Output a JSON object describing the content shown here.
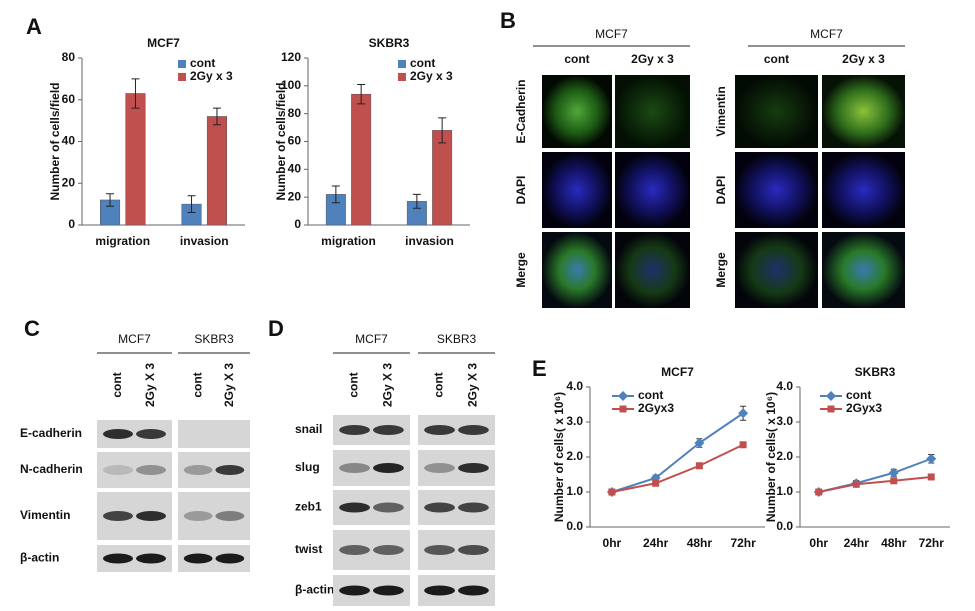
{
  "panel_labels": [
    "A",
    "B",
    "C",
    "D",
    "E"
  ],
  "chart_data": [
    {
      "type": "bar",
      "title": "MCF7",
      "y_label": "Number of cells/field",
      "categories": [
        "migration",
        "invasion"
      ],
      "series": [
        {
          "name": "cont",
          "color": "#4f81bd",
          "values": [
            12,
            10
          ],
          "errors": [
            3,
            4
          ]
        },
        {
          "name": "2Gy x 3",
          "color": "#c0504d",
          "values": [
            63,
            52
          ],
          "errors": [
            7,
            4
          ]
        }
      ],
      "ylim": [
        0,
        80
      ],
      "yticks": [
        0,
        20,
        40,
        60,
        80
      ]
    },
    {
      "type": "bar",
      "title": "SKBR3",
      "y_label": "Number of cells/field",
      "categories": [
        "migration",
        "invasion"
      ],
      "series": [
        {
          "name": "cont",
          "color": "#4f81bd",
          "values": [
            22,
            17
          ],
          "errors": [
            6,
            5
          ]
        },
        {
          "name": "2Gy x 3",
          "color": "#c0504d",
          "values": [
            94,
            68
          ],
          "errors": [
            7,
            9
          ]
        }
      ],
      "ylim": [
        0,
        120
      ],
      "yticks": [
        0,
        20,
        40,
        60,
        80,
        100,
        120
      ]
    },
    {
      "type": "line",
      "title": "MCF7",
      "y_label": "Number of cells( x 10⁶)",
      "categories": [
        "0hr",
        "24hr",
        "48hr",
        "72hr"
      ],
      "series": [
        {
          "name": "cont",
          "color": "#4f81bd",
          "values": [
            1.0,
            1.4,
            2.4,
            3.25
          ],
          "errors": [
            0.05,
            0.08,
            0.12,
            0.2
          ]
        },
        {
          "name": "2Gyx3",
          "color": "#c0504d",
          "values": [
            1.0,
            1.25,
            1.75,
            2.35
          ],
          "errors": [
            0.05,
            0.05,
            0.05,
            0.05
          ]
        }
      ],
      "ylim": [
        0,
        4
      ],
      "yticks": [
        {
          "value": 0,
          "label": "0.0"
        },
        {
          "value": 1,
          "label": "1.0"
        },
        {
          "value": 2,
          "label": "2.0"
        },
        {
          "value": 3,
          "label": "3.0"
        },
        {
          "value": 4,
          "label": "4.0"
        }
      ]
    },
    {
      "type": "line",
      "title": "SKBR3",
      "y_label": "Number of cells( x 10⁶)",
      "categories": [
        "0hr",
        "24hr",
        "48hr",
        "72hr"
      ],
      "series": [
        {
          "name": "cont",
          "color": "#4f81bd",
          "values": [
            1.0,
            1.25,
            1.55,
            1.95
          ],
          "errors": [
            0.05,
            0.08,
            0.1,
            0.12
          ]
        },
        {
          "name": "2Gyx3",
          "color": "#c0504d",
          "values": [
            1.0,
            1.22,
            1.32,
            1.43
          ],
          "errors": [
            0.05,
            0.05,
            0.05,
            0.05
          ]
        }
      ],
      "ylim": [
        0,
        4
      ],
      "yticks": [
        {
          "value": 0,
          "label": "0.0"
        },
        {
          "value": 1,
          "label": "1.0"
        },
        {
          "value": 2,
          "label": "2.0"
        },
        {
          "value": 3,
          "label": "3.0"
        },
        {
          "value": 4,
          "label": "4.0"
        }
      ]
    }
  ],
  "panel_b": {
    "groups": [
      {
        "title": "MCF7",
        "columns": [
          "cont",
          "2Gy x 3"
        ],
        "rows": [
          "E-Cadherin",
          "DAPI",
          "Merge"
        ]
      },
      {
        "title": "MCF7",
        "columns": [
          "cont",
          "2Gy x 3"
        ],
        "rows": [
          "Vimentin",
          "DAPI",
          "Merge"
        ]
      }
    ]
  },
  "panel_c": {
    "groups": [
      {
        "title": "MCF7",
        "lanes": [
          "cont",
          "2Gy X 3"
        ]
      },
      {
        "title": "SKBR3",
        "lanes": [
          "cont",
          "2Gy X 3"
        ]
      }
    ],
    "rows": [
      "E-cadherin",
      "N-cadherin",
      "Vimentin",
      "β-actin"
    ]
  },
  "panel_d": {
    "groups": [
      {
        "title": "MCF7",
        "lanes": [
          "cont",
          "2Gy X 3"
        ]
      },
      {
        "title": "SKBR3",
        "lanes": [
          "cont",
          "2Gy X 3"
        ]
      }
    ],
    "rows": [
      "snail",
      "slug",
      "zeb1",
      "twist",
      "β-actin"
    ]
  }
}
